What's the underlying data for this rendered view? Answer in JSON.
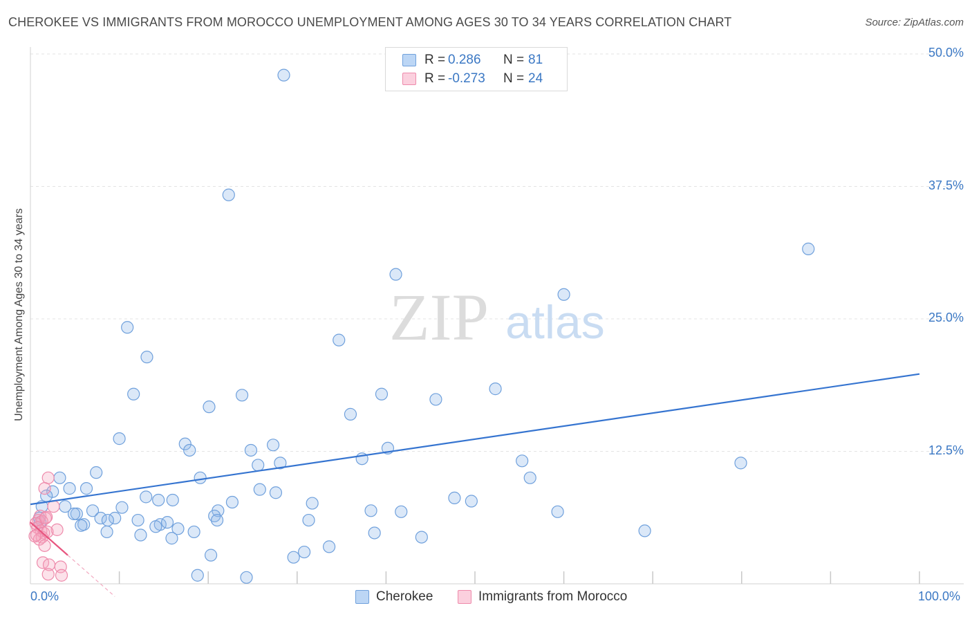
{
  "header": {
    "title": "CHEROKEE VS IMMIGRANTS FROM MOROCCO UNEMPLOYMENT AMONG AGES 30 TO 34 YEARS CORRELATION CHART",
    "source": "Source: ZipAtlas.com"
  },
  "legend": {
    "rows": [
      {
        "r_label": "R =",
        "r_value": "0.286",
        "n_label": "N =",
        "n_value": "81",
        "color": "#8fb8e8"
      },
      {
        "r_label": "R =",
        "r_value": "-0.273",
        "n_label": "N =",
        "n_value": "24",
        "color": "#f5a6bf"
      }
    ]
  },
  "bottom_legend": {
    "items": [
      {
        "label": "Cherokee",
        "color": "#8fb8e8"
      },
      {
        "label": "Immigrants from Morocco",
        "color": "#f5a6bf"
      }
    ]
  },
  "watermark": {
    "zip": "ZIP",
    "atlas": "atlas"
  },
  "chart_data": {
    "type": "scatter",
    "title": "CHEROKEE VS IMMIGRANTS FROM MOROCCO UNEMPLOYMENT AMONG AGES 30 TO 34 YEARS CORRELATION CHART",
    "xlabel": "",
    "ylabel": "Unemployment Among Ages 30 to 34 years",
    "xlim": [
      0,
      100
    ],
    "ylim": [
      0,
      50
    ],
    "x_tick_labels": {
      "min": "0.0%",
      "max": "100.0%"
    },
    "y_ticks": [
      {
        "value": 12.5,
        "label": "12.5%"
      },
      {
        "value": 25.0,
        "label": "25.0%"
      },
      {
        "value": 37.5,
        "label": "37.5%"
      },
      {
        "value": 50.0,
        "label": "50.0%"
      }
    ],
    "series": [
      {
        "name": "Cherokee",
        "color": "#8fb8e8",
        "stroke": "#6fa0dc",
        "trend": {
          "x": [
            0,
            100
          ],
          "y": [
            7.5,
            19.8
          ],
          "color": "#3574d0"
        },
        "points": [
          [
            28.5,
            48.0
          ],
          [
            22.3,
            36.7
          ],
          [
            87.5,
            31.6
          ],
          [
            41.1,
            29.2
          ],
          [
            60.0,
            27.3
          ],
          [
            10.9,
            24.2
          ],
          [
            34.7,
            23.0
          ],
          [
            13.1,
            21.4
          ],
          [
            11.6,
            17.9
          ],
          [
            23.8,
            17.8
          ],
          [
            39.5,
            17.9
          ],
          [
            45.6,
            17.4
          ],
          [
            52.3,
            18.4
          ],
          [
            20.1,
            16.7
          ],
          [
            36.0,
            16.0
          ],
          [
            10.0,
            13.7
          ],
          [
            17.4,
            13.2
          ],
          [
            27.3,
            13.1
          ],
          [
            17.9,
            12.6
          ],
          [
            24.8,
            12.6
          ],
          [
            40.2,
            12.8
          ],
          [
            37.3,
            11.8
          ],
          [
            28.1,
            11.4
          ],
          [
            25.6,
            11.2
          ],
          [
            55.3,
            11.6
          ],
          [
            79.9,
            11.4
          ],
          [
            7.4,
            10.5
          ],
          [
            3.3,
            10.0
          ],
          [
            19.1,
            10.0
          ],
          [
            56.2,
            10.0
          ],
          [
            6.3,
            9.0
          ],
          [
            2.5,
            8.7
          ],
          [
            25.8,
            8.9
          ],
          [
            27.6,
            8.6
          ],
          [
            4.4,
            9.0
          ],
          [
            1.8,
            8.3
          ],
          [
            13.0,
            8.2
          ],
          [
            14.4,
            7.9
          ],
          [
            16.0,
            7.9
          ],
          [
            22.7,
            7.7
          ],
          [
            31.7,
            7.6
          ],
          [
            47.7,
            8.1
          ],
          [
            49.6,
            7.8
          ],
          [
            1.3,
            7.3
          ],
          [
            3.9,
            7.3
          ],
          [
            10.3,
            7.2
          ],
          [
            7.0,
            6.9
          ],
          [
            5.2,
            6.6
          ],
          [
            4.9,
            6.6
          ],
          [
            21.1,
            6.9
          ],
          [
            38.3,
            6.9
          ],
          [
            41.7,
            6.8
          ],
          [
            59.3,
            6.8
          ],
          [
            1.0,
            6.2
          ],
          [
            7.9,
            6.2
          ],
          [
            9.5,
            6.2
          ],
          [
            12.1,
            6.0
          ],
          [
            20.7,
            6.4
          ],
          [
            31.3,
            6.0
          ],
          [
            21.0,
            6.0
          ],
          [
            6.0,
            5.6
          ],
          [
            8.7,
            6.0
          ],
          [
            14.6,
            5.6
          ],
          [
            15.4,
            5.8
          ],
          [
            16.6,
            5.2
          ],
          [
            5.7,
            5.5
          ],
          [
            8.6,
            4.9
          ],
          [
            12.4,
            4.6
          ],
          [
            14.1,
            5.4
          ],
          [
            18.4,
            4.9
          ],
          [
            38.7,
            4.8
          ],
          [
            69.1,
            5.0
          ],
          [
            15.9,
            4.3
          ],
          [
            44.0,
            4.4
          ],
          [
            33.6,
            3.5
          ],
          [
            30.8,
            3.0
          ],
          [
            29.6,
            2.5
          ],
          [
            20.3,
            2.7
          ],
          [
            18.8,
            0.8
          ],
          [
            24.3,
            0.6
          ],
          [
            1.1,
            5.8
          ]
        ]
      },
      {
        "name": "Immigrants from Morocco",
        "color": "#f5a6bf",
        "stroke": "#ee8aab",
        "trend": {
          "x": [
            0,
            4.2
          ],
          "y": [
            5.8,
            2.7
          ],
          "dash_x": [
            4.2,
            9.5
          ],
          "dash_y": [
            2.7,
            -1.2
          ],
          "color": "#e8557f"
        },
        "points": [
          [
            2.0,
            10.0
          ],
          [
            1.6,
            9.0
          ],
          [
            2.6,
            7.3
          ],
          [
            1.1,
            6.4
          ],
          [
            1.8,
            6.3
          ],
          [
            0.9,
            6.0
          ],
          [
            1.3,
            5.9
          ],
          [
            0.6,
            5.7
          ],
          [
            0.8,
            5.3
          ],
          [
            1.2,
            5.0
          ],
          [
            1.5,
            4.8
          ],
          [
            0.7,
            4.6
          ],
          [
            1.3,
            4.4
          ],
          [
            1.0,
            4.2
          ],
          [
            0.5,
            4.5
          ],
          [
            3.0,
            5.1
          ],
          [
            1.9,
            4.9
          ],
          [
            1.6,
            3.6
          ],
          [
            1.4,
            2.0
          ],
          [
            2.1,
            1.8
          ],
          [
            3.4,
            1.6
          ],
          [
            2.0,
            0.9
          ],
          [
            3.5,
            0.8
          ],
          [
            1.7,
            6.2
          ]
        ]
      }
    ]
  }
}
